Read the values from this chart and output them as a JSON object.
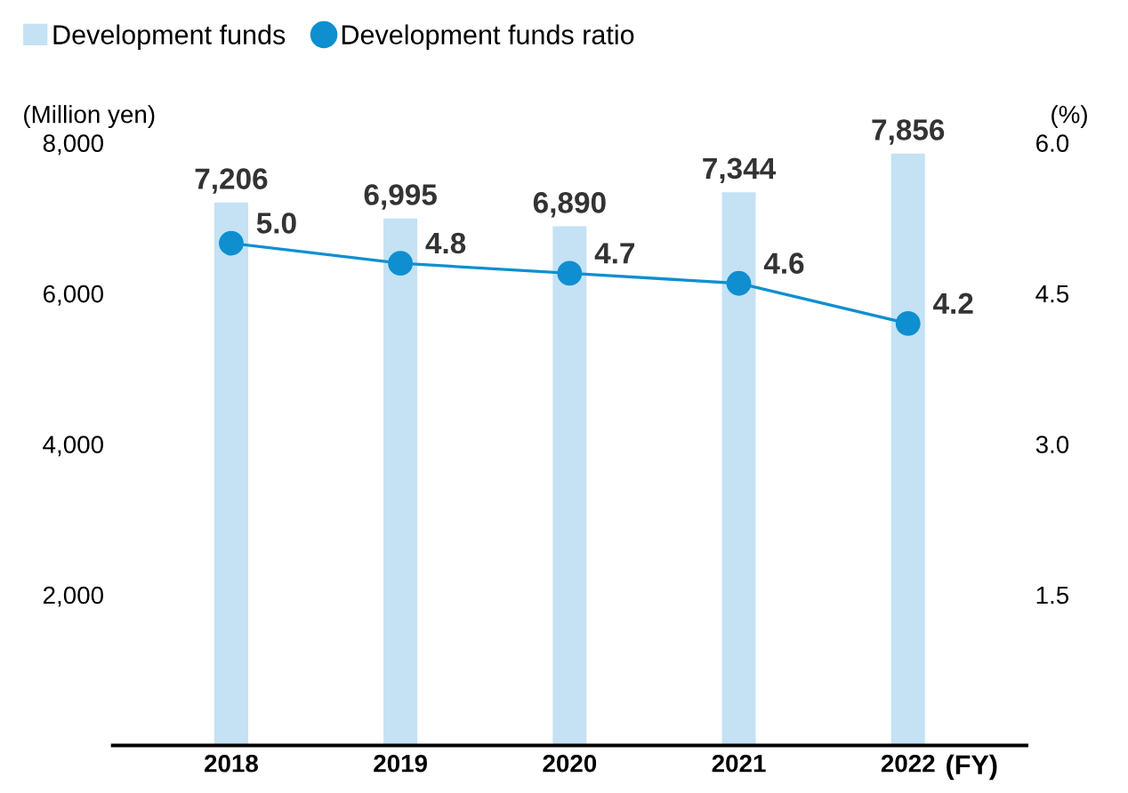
{
  "chart_data": {
    "type": "bar",
    "categories": [
      "2018",
      "2019",
      "2020",
      "2021",
      "2022"
    ],
    "xlabel": "(FY)",
    "ylabel": "(Million yen)",
    "y2label": "(%)",
    "series": [
      {
        "name": "Development funds",
        "color": "#c4e2f4",
        "values": [
          7206,
          6995,
          6890,
          7344,
          7856
        ],
        "value_labels": [
          "7,206",
          "6,995",
          "6,890",
          "7,344",
          "7,856"
        ]
      },
      {
        "name": "Development funds ratio",
        "type": "line",
        "axis": "y2",
        "color": "#0f8fd0",
        "marker": "circle",
        "values": [
          5.0,
          4.8,
          4.7,
          4.6,
          4.2
        ],
        "value_labels": [
          "5.0",
          "4.8",
          "4.7",
          "4.6",
          "4.2"
        ]
      }
    ],
    "data_labels": true,
    "ylim": [
      0,
      8000
    ],
    "yticks": [
      {
        "value": 2000,
        "label": "2,000"
      },
      {
        "value": 4000,
        "label": "4,000"
      },
      {
        "value": 6000,
        "label": "6,000"
      },
      {
        "value": 8000,
        "label": "8,000"
      }
    ],
    "y2lim": [
      0,
      6
    ],
    "y2ticks": [
      1.5,
      {
        "value": 3,
        "label": "3.0"
      },
      4.5,
      {
        "value": 6,
        "label": "6.0"
      }
    ],
    "grid": false,
    "legend": "top left"
  }
}
